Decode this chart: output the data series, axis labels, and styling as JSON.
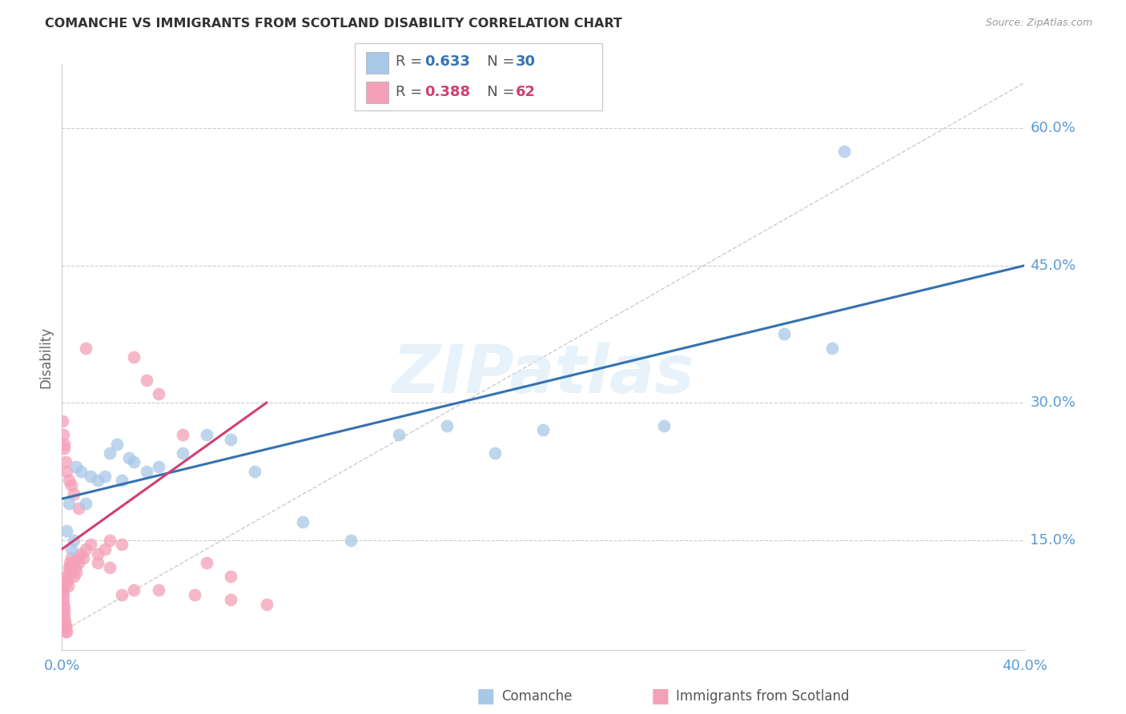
{
  "title": "COMANCHE VS IMMIGRANTS FROM SCOTLAND DISABILITY CORRELATION CHART",
  "source": "Source: ZipAtlas.com",
  "ylabel": "Disability",
  "y_ticks_right": [
    15.0,
    30.0,
    45.0,
    60.0
  ],
  "watermark": "ZIPatlas",
  "comanche_color": "#a8c8e8",
  "scotland_color": "#f4a0b8",
  "comanche_line_color": "#3572b0",
  "scotland_line_color": "#d04070",
  "diagonal_color": "#cccccc",
  "grid_color": "#cccccc",
  "axis_color": "#5b9bd5",
  "xmin": 0.0,
  "xmax": 40.0,
  "ymin": 3.0,
  "ymax": 67.0,
  "comanche_x": [
    0.2,
    0.3,
    0.4,
    0.5,
    0.6,
    0.8,
    1.0,
    1.2,
    1.5,
    1.8,
    2.0,
    2.3,
    2.5,
    2.8,
    3.0,
    3.5,
    4.0,
    5.0,
    6.0,
    7.0,
    8.0,
    10.0,
    12.0,
    14.0,
    16.0,
    18.0,
    20.0,
    25.0,
    30.0,
    32.0
  ],
  "comanche_y": [
    16.0,
    19.0,
    14.0,
    15.0,
    23.0,
    22.5,
    19.0,
    22.0,
    21.5,
    22.0,
    24.5,
    25.5,
    21.5,
    24.0,
    23.5,
    22.5,
    23.0,
    24.5,
    26.5,
    26.0,
    22.5,
    17.0,
    15.0,
    26.5,
    27.5,
    24.5,
    27.0,
    27.5,
    37.5,
    36.0
  ],
  "comanche_outlier_x": [
    32.5
  ],
  "comanche_outlier_y": [
    57.5
  ],
  "scotland_x": [
    0.02,
    0.03,
    0.04,
    0.05,
    0.06,
    0.07,
    0.08,
    0.09,
    0.1,
    0.12,
    0.14,
    0.15,
    0.16,
    0.18,
    0.2,
    0.22,
    0.25,
    0.28,
    0.3,
    0.32,
    0.35,
    0.38,
    0.4,
    0.45,
    0.5,
    0.55,
    0.6,
    0.65,
    0.7,
    0.8,
    0.9,
    1.0,
    1.2,
    1.5,
    1.8,
    2.0,
    2.5,
    3.0,
    3.5,
    4.0,
    5.0,
    6.0,
    7.0,
    0.03,
    0.05,
    0.08,
    0.1,
    0.15,
    0.2,
    0.3,
    0.4,
    0.5,
    0.7,
    1.0,
    1.5,
    2.0,
    2.5,
    3.0,
    4.0,
    5.5,
    7.0,
    8.5
  ],
  "scotland_y": [
    10.5,
    10.0,
    9.5,
    9.0,
    8.5,
    8.0,
    7.5,
    7.0,
    6.5,
    6.0,
    5.5,
    5.5,
    5.0,
    5.0,
    11.0,
    10.5,
    10.0,
    11.5,
    12.0,
    12.5,
    12.0,
    13.0,
    11.5,
    12.5,
    11.0,
    12.0,
    11.5,
    13.0,
    12.5,
    13.5,
    13.0,
    14.0,
    14.5,
    13.5,
    14.0,
    15.0,
    14.5,
    35.0,
    32.5,
    31.0,
    26.5,
    12.5,
    11.0,
    28.0,
    26.5,
    25.5,
    25.0,
    23.5,
    22.5,
    21.5,
    21.0,
    20.0,
    18.5,
    36.0,
    12.5,
    12.0,
    9.0,
    9.5,
    9.5,
    9.0,
    8.5,
    8.0
  ],
  "comanche_line_x0": 0.0,
  "comanche_line_y0": 19.5,
  "comanche_line_x1": 40.0,
  "comanche_line_y1": 45.0,
  "scotland_line_x0": 0.0,
  "scotland_line_y0": 14.0,
  "scotland_line_x1": 8.5,
  "scotland_line_y1": 30.0
}
